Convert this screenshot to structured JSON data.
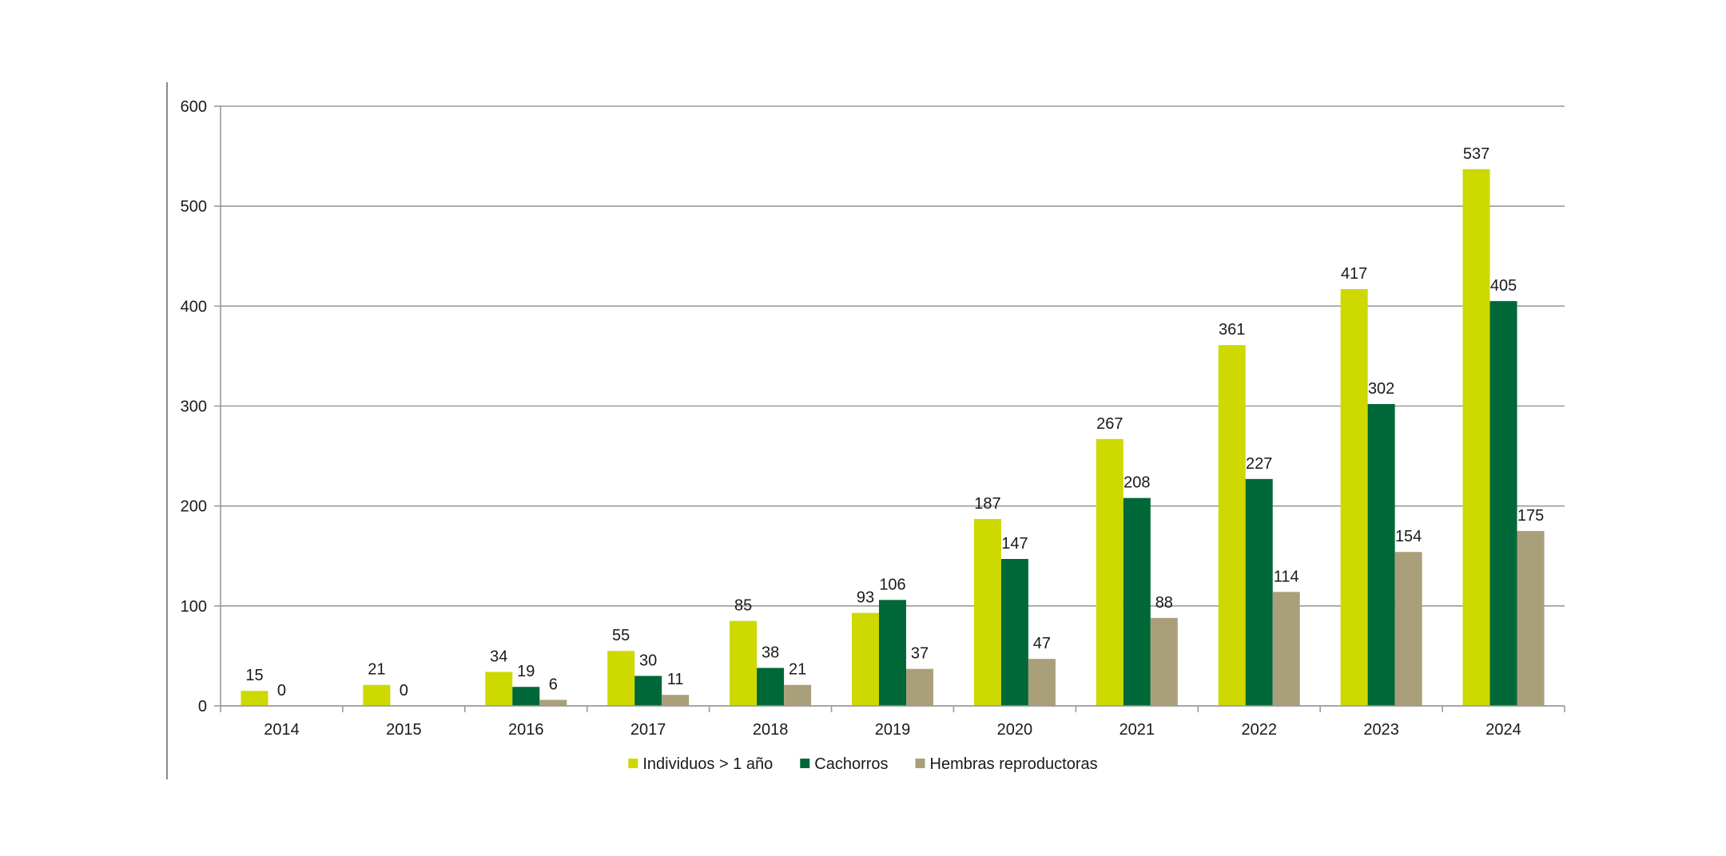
{
  "chart_data": {
    "type": "bar",
    "title": "",
    "xlabel": "",
    "ylabel": "",
    "categories": [
      "2014",
      "2015",
      "2016",
      "2017",
      "2018",
      "2019",
      "2020",
      "2021",
      "2022",
      "2023",
      "2024"
    ],
    "series": [
      {
        "name": "Individuos > 1 año",
        "color": "#cdd900",
        "values": [
          15,
          21,
          34,
          55,
          85,
          93,
          187,
          267,
          361,
          417,
          537
        ]
      },
      {
        "name": "Cachorros",
        "color": "#006838",
        "values": [
          0,
          0,
          19,
          30,
          38,
          106,
          147,
          208,
          227,
          302,
          405
        ]
      },
      {
        "name": "Hembras reproductoras",
        "color": "#a99f7b",
        "values": [
          null,
          null,
          6,
          11,
          21,
          37,
          47,
          88,
          114,
          154,
          175
        ]
      }
    ],
    "ylim": [
      0,
      600
    ],
    "yticks": [
      0,
      100,
      200,
      300,
      400,
      500,
      600
    ],
    "grid": true,
    "legend_position": "bottom-center",
    "gridline_color": "#9a9a9a"
  }
}
